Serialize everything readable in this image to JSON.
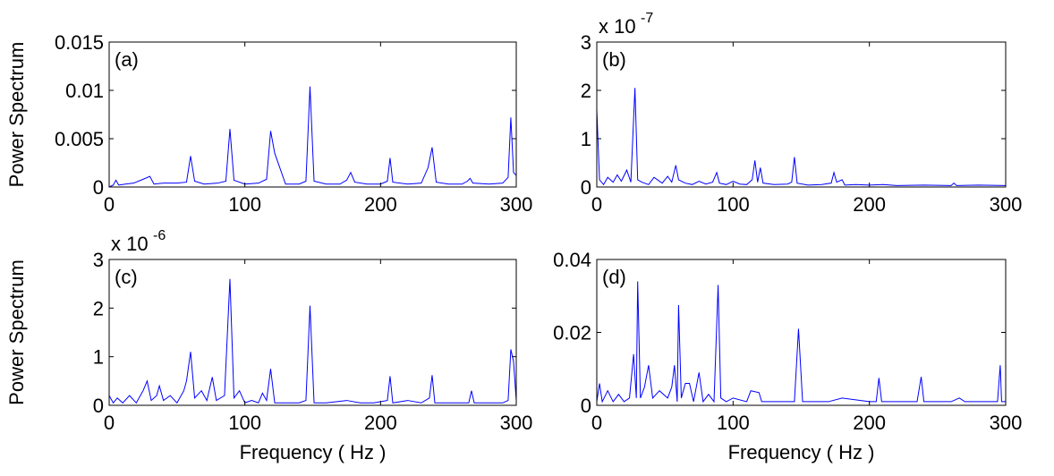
{
  "chart_data": [
    {
      "type": "line",
      "panel_label": "(a)",
      "ylabel": "Power Spectrum",
      "color": "#0000ff",
      "xlim": [
        0,
        300
      ],
      "xticks": [
        0,
        100,
        200,
        300
      ],
      "ylim": [
        0,
        0.015
      ],
      "yticks": [
        0,
        0.005,
        0.01,
        0.015
      ],
      "x": [
        0,
        3,
        5,
        7,
        12,
        18,
        25,
        30,
        33,
        40,
        50,
        57,
        60,
        63,
        70,
        80,
        86,
        89,
        92,
        100,
        110,
        116,
        119,
        122,
        130,
        140,
        145,
        148,
        151,
        160,
        170,
        175,
        178,
        181,
        190,
        200,
        205,
        207,
        209,
        220,
        230,
        235,
        238,
        241,
        250,
        260,
        264,
        266,
        268,
        280,
        290,
        294,
        296,
        298,
        300
      ],
      "values": [
        0,
        0.0002,
        0.0007,
        0.0002,
        0.0003,
        0.0004,
        0.0008,
        0.0011,
        0.0003,
        0.0004,
        0.0004,
        0.0005,
        0.0032,
        0.0006,
        0.0003,
        0.0004,
        0.0006,
        0.006,
        0.0007,
        0.0003,
        0.0004,
        0.0008,
        0.0058,
        0.0035,
        0.0003,
        0.0003,
        0.0006,
        0.0104,
        0.0006,
        0.0003,
        0.0003,
        0.0007,
        0.0015,
        0.0005,
        0.0003,
        0.0003,
        0.0006,
        0.003,
        0.0005,
        0.0003,
        0.0004,
        0.002,
        0.0041,
        0.0005,
        0.0003,
        0.0003,
        0.0006,
        0.0009,
        0.0004,
        0.0003,
        0.0004,
        0.001,
        0.0072,
        0.0015,
        0.0012
      ]
    },
    {
      "type": "line",
      "panel_label": "(b)",
      "y_scale": {
        "base": "x 10",
        "exponent": "-7"
      },
      "color": "#0000ff",
      "xlim": [
        0,
        300
      ],
      "xticks": [
        0,
        100,
        200,
        300
      ],
      "ylim": [
        0,
        3
      ],
      "yticks": [
        0,
        1,
        2,
        3
      ],
      "x": [
        0,
        2,
        5,
        8,
        12,
        15,
        18,
        22,
        25,
        28,
        30,
        33,
        38,
        42,
        48,
        52,
        55,
        58,
        60,
        65,
        70,
        75,
        80,
        85,
        88,
        90,
        95,
        100,
        105,
        110,
        114,
        116,
        118,
        120,
        122,
        130,
        140,
        143,
        145,
        147,
        155,
        165,
        172,
        174,
        176,
        180,
        182,
        190,
        200,
        210,
        220,
        240,
        260,
        262,
        264,
        280,
        300
      ],
      "values": [
        1.6,
        0.15,
        0.05,
        0.2,
        0.1,
        0.25,
        0.12,
        0.35,
        0.1,
        2.05,
        0.15,
        0.1,
        0.05,
        0.2,
        0.08,
        0.22,
        0.1,
        0.45,
        0.15,
        0.08,
        0.05,
        0.12,
        0.06,
        0.1,
        0.3,
        0.08,
        0.05,
        0.12,
        0.06,
        0.05,
        0.15,
        0.55,
        0.1,
        0.4,
        0.08,
        0.05,
        0.06,
        0.1,
        0.62,
        0.08,
        0.04,
        0.05,
        0.08,
        0.3,
        0.1,
        0.15,
        0.04,
        0.05,
        0.04,
        0.05,
        0.03,
        0.04,
        0.03,
        0.08,
        0.03,
        0.04,
        0.03
      ]
    },
    {
      "type": "line",
      "panel_label": "(c)",
      "ylabel": "Power Spectrum",
      "xlabel": "Frequency ( Hz )",
      "y_scale": {
        "base": "x 10",
        "exponent": "-6"
      },
      "color": "#0000ff",
      "xlim": [
        0,
        300
      ],
      "xticks": [
        0,
        100,
        200,
        300
      ],
      "ylim": [
        0,
        3
      ],
      "yticks": [
        0,
        1,
        2,
        3
      ],
      "x": [
        0,
        3,
        6,
        10,
        15,
        20,
        25,
        28,
        31,
        35,
        37,
        40,
        45,
        50,
        55,
        57,
        60,
        63,
        68,
        72,
        76,
        79,
        85,
        89,
        92,
        96,
        100,
        105,
        110,
        113,
        116,
        119,
        122,
        130,
        140,
        145,
        148,
        151,
        160,
        175,
        185,
        195,
        205,
        207,
        209,
        220,
        230,
        236,
        238,
        240,
        250,
        265,
        267,
        269,
        280,
        290,
        294,
        296,
        298,
        300
      ],
      "values": [
        0.2,
        0.05,
        0.15,
        0.05,
        0.2,
        0.05,
        0.3,
        0.5,
        0.1,
        0.2,
        0.4,
        0.1,
        0.2,
        0.05,
        0.3,
        0.5,
        1.1,
        0.15,
        0.3,
        0.1,
        0.58,
        0.1,
        0.2,
        2.6,
        0.15,
        0.3,
        0.05,
        0.1,
        0.05,
        0.25,
        0.1,
        0.75,
        0.05,
        0.05,
        0.05,
        0.1,
        2.05,
        0.05,
        0.05,
        0.1,
        0.05,
        0.05,
        0.1,
        0.6,
        0.05,
        0.1,
        0.05,
        0.15,
        0.62,
        0.05,
        0.05,
        0.05,
        0.3,
        0.05,
        0.05,
        0.05,
        0.1,
        1.15,
        0.9,
        0.1
      ]
    },
    {
      "type": "line",
      "panel_label": "(d)",
      "xlabel": "Frequency ( Hz )",
      "color": "#0000ff",
      "xlim": [
        0,
        300
      ],
      "xticks": [
        0,
        100,
        200,
        300
      ],
      "ylim": [
        0,
        0.04
      ],
      "yticks": [
        0,
        0.02,
        0.04
      ],
      "x": [
        0,
        2,
        4,
        8,
        12,
        16,
        20,
        24,
        27,
        29,
        30,
        32,
        35,
        38,
        41,
        46,
        52,
        55,
        57,
        59,
        60,
        62,
        65,
        68,
        71,
        75,
        78,
        82,
        86,
        89,
        91,
        95,
        100,
        110,
        113,
        119,
        121,
        130,
        140,
        145,
        148,
        151,
        160,
        170,
        180,
        200,
        205,
        207,
        209,
        220,
        230,
        235,
        238,
        240,
        250,
        260,
        266,
        270,
        280,
        290,
        294,
        296,
        297,
        300
      ],
      "values": [
        0.001,
        0.006,
        0.001,
        0.004,
        0.001,
        0.003,
        0.001,
        0.002,
        0.014,
        0.002,
        0.034,
        0.002,
        0.005,
        0.011,
        0.002,
        0.004,
        0.002,
        0.005,
        0.011,
        0.001,
        0.0275,
        0.002,
        0.006,
        0.006,
        0.001,
        0.009,
        0.001,
        0.003,
        0.001,
        0.033,
        0.002,
        0.001,
        0.002,
        0.001,
        0.004,
        0.0035,
        0.001,
        0.001,
        0.001,
        0.001,
        0.021,
        0.001,
        0.001,
        0.001,
        0.002,
        0.001,
        0.001,
        0.0075,
        0.001,
        0.001,
        0.001,
        0.001,
        0.0078,
        0.001,
        0.001,
        0.001,
        0.002,
        0.001,
        0.001,
        0.001,
        0.001,
        0.011,
        0.001,
        0.001
      ]
    }
  ]
}
